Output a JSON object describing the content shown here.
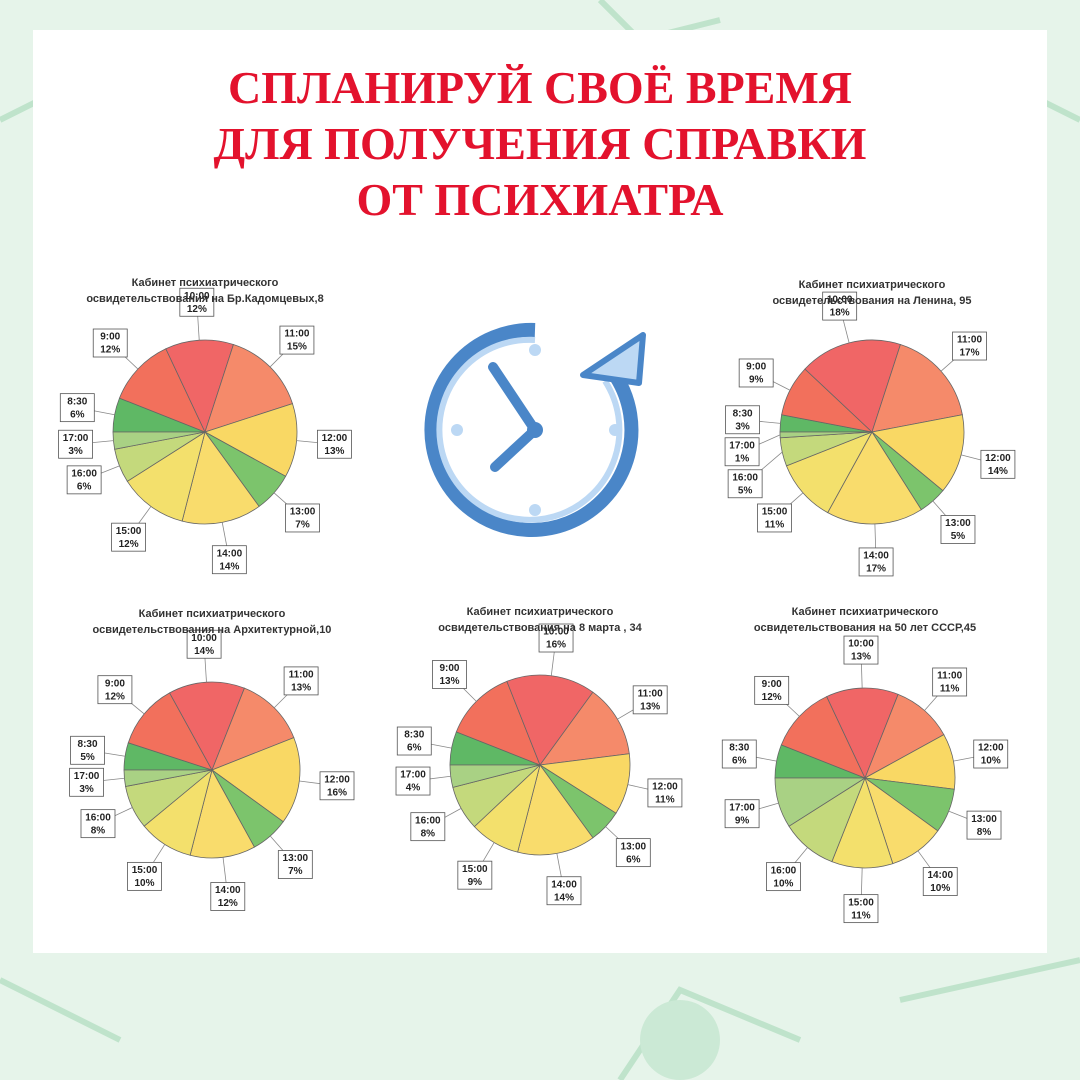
{
  "poster": {
    "title_lines": [
      "СПЛАНИРУЙ СВОЁ ВРЕМЯ",
      "ДЛЯ ПОЛУЧЕНИЯ СПРАВКИ",
      "ОТ ПСИХИАТРА"
    ]
  },
  "chart_data": [
    {
      "type": "pie",
      "title": "Кабинет психиатрического освидетельствования на Бр.Кадомцевых,8",
      "categories": [
        "8:30",
        "9:00",
        "10:00",
        "11:00",
        "12:00",
        "13:00",
        "14:00",
        "15:00",
        "16:00",
        "17:00"
      ],
      "values": [
        6,
        12,
        12,
        15,
        13,
        7,
        14,
        12,
        6,
        3
      ],
      "value_labels": [
        "6%",
        "12%",
        "12%",
        "15%",
        "13%",
        "7%",
        "14%",
        "12%",
        "6%",
        "3%"
      ],
      "colors": [
        "#5fb865",
        "#f2705c",
        "#f06666",
        "#f58a6a",
        "#f9d864",
        "#7cc46c",
        "#f9dc6c",
        "#f3e06c",
        "#c4d97c",
        "#a9d184"
      ]
    },
    {
      "type": "pie",
      "title": "Кабинет психиатрического освидетельствования на Ленина, 95",
      "categories": [
        "8:30",
        "9:00",
        "10:00",
        "11:00",
        "12:00",
        "13:00",
        "14:00",
        "15:00",
        "16:00",
        "17:00"
      ],
      "values": [
        3,
        9,
        18,
        17,
        14,
        5,
        17,
        11,
        5,
        1
      ],
      "value_labels": [
        "3%",
        "9%",
        "18%",
        "17%",
        "14%",
        "5%",
        "17%",
        "11%",
        "5%",
        "1%"
      ],
      "colors": [
        "#5fb865",
        "#f2705c",
        "#f06666",
        "#f58a6a",
        "#f9d864",
        "#7cc46c",
        "#f9dc6c",
        "#f3e06c",
        "#c4d97c",
        "#a9d184"
      ]
    },
    {
      "type": "pie",
      "title": "Кабинет психиатрического освидетельствования на Архитектурной,10",
      "categories": [
        "8:30",
        "9:00",
        "10:00",
        "11:00",
        "12:00",
        "13:00",
        "14:00",
        "15:00",
        "16:00",
        "17:00"
      ],
      "values": [
        5,
        12,
        14,
        13,
        16,
        7,
        12,
        10,
        8,
        3
      ],
      "value_labels": [
        "5%",
        "12%",
        "14%",
        "13%",
        "16%",
        "7%",
        "12%",
        "10%",
        "8%",
        "3%"
      ],
      "colors": [
        "#5fb865",
        "#f2705c",
        "#f06666",
        "#f58a6a",
        "#f9d864",
        "#7cc46c",
        "#f9dc6c",
        "#f3e06c",
        "#c4d97c",
        "#a9d184"
      ]
    },
    {
      "type": "pie",
      "title": "Кабинет психиатрического освидетельствования на 8 марта , 34",
      "categories": [
        "8:30",
        "9:00",
        "10:00",
        "11:00",
        "12:00",
        "13:00",
        "14:00",
        "15:00",
        "16:00",
        "17:00"
      ],
      "values": [
        6,
        13,
        16,
        13,
        11,
        6,
        14,
        9,
        8,
        4
      ],
      "value_labels": [
        "6%",
        "13%",
        "16%",
        "13%",
        "11%",
        "6%",
        "14%",
        "9%",
        "8%",
        "4%"
      ],
      "colors": [
        "#5fb865",
        "#f2705c",
        "#f06666",
        "#f58a6a",
        "#f9d864",
        "#7cc46c",
        "#f9dc6c",
        "#f3e06c",
        "#c4d97c",
        "#a9d184"
      ]
    },
    {
      "type": "pie",
      "title": "Кабинет психиатрического освидетельствования на 50 лет СССР,45",
      "categories": [
        "8:30",
        "9:00",
        "10:00",
        "11:00",
        "12:00",
        "13:00",
        "14:00",
        "15:00",
        "16:00",
        "17:00"
      ],
      "values": [
        6,
        12,
        13,
        11,
        10,
        8,
        10,
        11,
        10,
        9
      ],
      "value_labels": [
        "6%",
        "12%",
        "13%",
        "11%",
        "10%",
        "8%",
        "10%",
        "11%",
        "10%",
        "9%"
      ],
      "colors": [
        "#5fb865",
        "#f2705c",
        "#f06666",
        "#f58a6a",
        "#f9d864",
        "#7cc46c",
        "#f9dc6c",
        "#f3e06c",
        "#c4d97c",
        "#a9d184"
      ]
    }
  ]
}
